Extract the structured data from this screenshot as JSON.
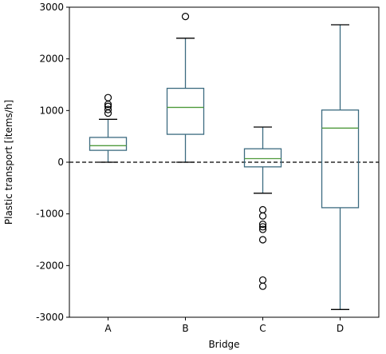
{
  "chart_data": {
    "type": "box",
    "title": "",
    "xlabel": "Bridge",
    "ylabel": "Plastic transport [items/h]",
    "categories": [
      "A",
      "B",
      "C",
      "D"
    ],
    "ylim": [
      -3000,
      3000
    ],
    "yticks": [
      -3000,
      -2000,
      -1000,
      0,
      1000,
      2000,
      3000
    ],
    "grid": false,
    "reference_line": {
      "y": 0,
      "style": "dashed",
      "color": "#000000"
    },
    "boxes": [
      {
        "category": "A",
        "whisker_low": 0,
        "q1": 230,
        "median": 320,
        "q3": 480,
        "whisker_high": 830,
        "fliers": [
          950,
          1020,
          1080,
          1120,
          1250
        ]
      },
      {
        "category": "B",
        "whisker_low": 0,
        "q1": 540,
        "median": 1060,
        "q3": 1430,
        "whisker_high": 2400,
        "fliers": [
          2820
        ]
      },
      {
        "category": "C",
        "whisker_low": -600,
        "q1": -90,
        "median": 70,
        "q3": 260,
        "whisker_high": 680,
        "fliers": [
          -920,
          -1040,
          -1200,
          -1250,
          -1300,
          -1500,
          -2280,
          -2400
        ]
      },
      {
        "category": "D",
        "whisker_low": -2850,
        "q1": -880,
        "median": 660,
        "q3": 1010,
        "whisker_high": 2660,
        "fliers": []
      }
    ],
    "colors": {
      "box": "#3c6b80",
      "median": "#4f9a3c",
      "flier": "#000000",
      "axes": "#000000"
    }
  }
}
